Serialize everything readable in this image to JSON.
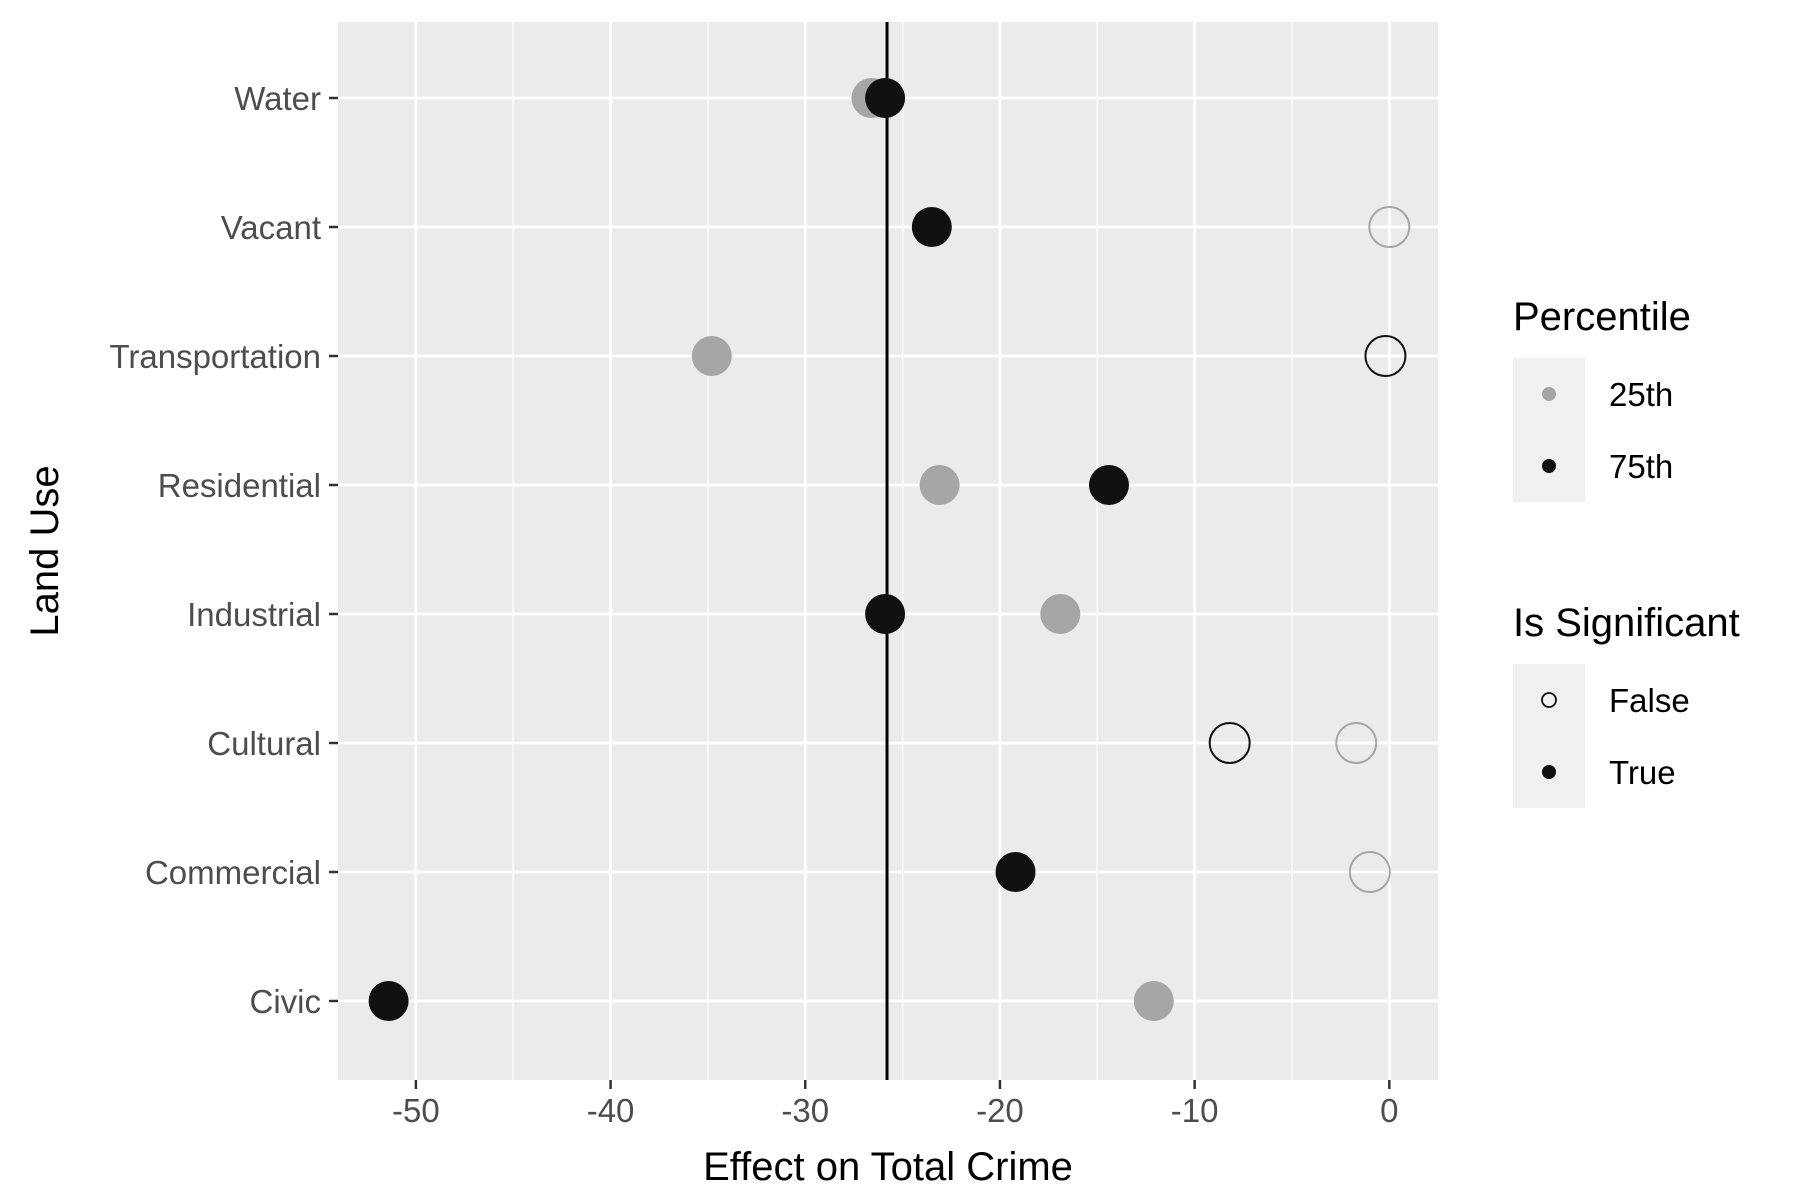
{
  "chart_data": {
    "type": "scatter",
    "xlabel": "Effect on Total Crime",
    "ylabel": "Land Use",
    "xlim": [
      -54,
      2.5
    ],
    "x_ticks": [
      -50,
      -40,
      -30,
      -20,
      -10,
      0
    ],
    "x_tick_labels": [
      "-50",
      "-40",
      "-30",
      "-20",
      "-10",
      "0"
    ],
    "categories": [
      "Civic",
      "Commercial",
      "Cultural",
      "Industrial",
      "Residential",
      "Transportation",
      "Vacant",
      "Water"
    ],
    "reference_line_x": -25.8,
    "grid": true,
    "legend_position": "right",
    "colors": {
      "panel_bg": "#ebebeb",
      "grid": "#ffffff",
      "p25": "#a6a6a6",
      "p75": "#111111",
      "legend_key_bg": "#f0f0f0"
    },
    "series": [
      {
        "name": "25th",
        "points": [
          {
            "category": "Civic",
            "x": -12.1,
            "significant": true
          },
          {
            "category": "Commercial",
            "x": -1.0,
            "significant": false
          },
          {
            "category": "Cultural",
            "x": -1.7,
            "significant": false
          },
          {
            "category": "Industrial",
            "x": -16.9,
            "significant": true
          },
          {
            "category": "Residential",
            "x": -23.1,
            "significant": true
          },
          {
            "category": "Transportation",
            "x": -34.8,
            "significant": true
          },
          {
            "category": "Vacant",
            "x": 0.0,
            "significant": false
          },
          {
            "category": "Water",
            "x": -26.6,
            "significant": true
          }
        ]
      },
      {
        "name": "75th",
        "points": [
          {
            "category": "Civic",
            "x": -51.4,
            "significant": true
          },
          {
            "category": "Commercial",
            "x": -19.2,
            "significant": true
          },
          {
            "category": "Cultural",
            "x": -8.2,
            "significant": false
          },
          {
            "category": "Industrial",
            "x": -25.9,
            "significant": true
          },
          {
            "category": "Residential",
            "x": -14.4,
            "significant": true
          },
          {
            "category": "Transportation",
            "x": -0.2,
            "significant": false
          },
          {
            "category": "Vacant",
            "x": -23.5,
            "significant": true
          },
          {
            "category": "Water",
            "x": -25.9,
            "significant": true
          }
        ]
      }
    ],
    "legends": [
      {
        "title": "Percentile",
        "items": [
          {
            "label": "25th",
            "color": "#a6a6a6",
            "filled": true
          },
          {
            "label": "75th",
            "color": "#111111",
            "filled": true
          }
        ]
      },
      {
        "title": "Is Significant",
        "items": [
          {
            "label": "False",
            "color": "#111111",
            "filled": false
          },
          {
            "label": "True",
            "color": "#111111",
            "filled": true
          }
        ]
      }
    ]
  }
}
